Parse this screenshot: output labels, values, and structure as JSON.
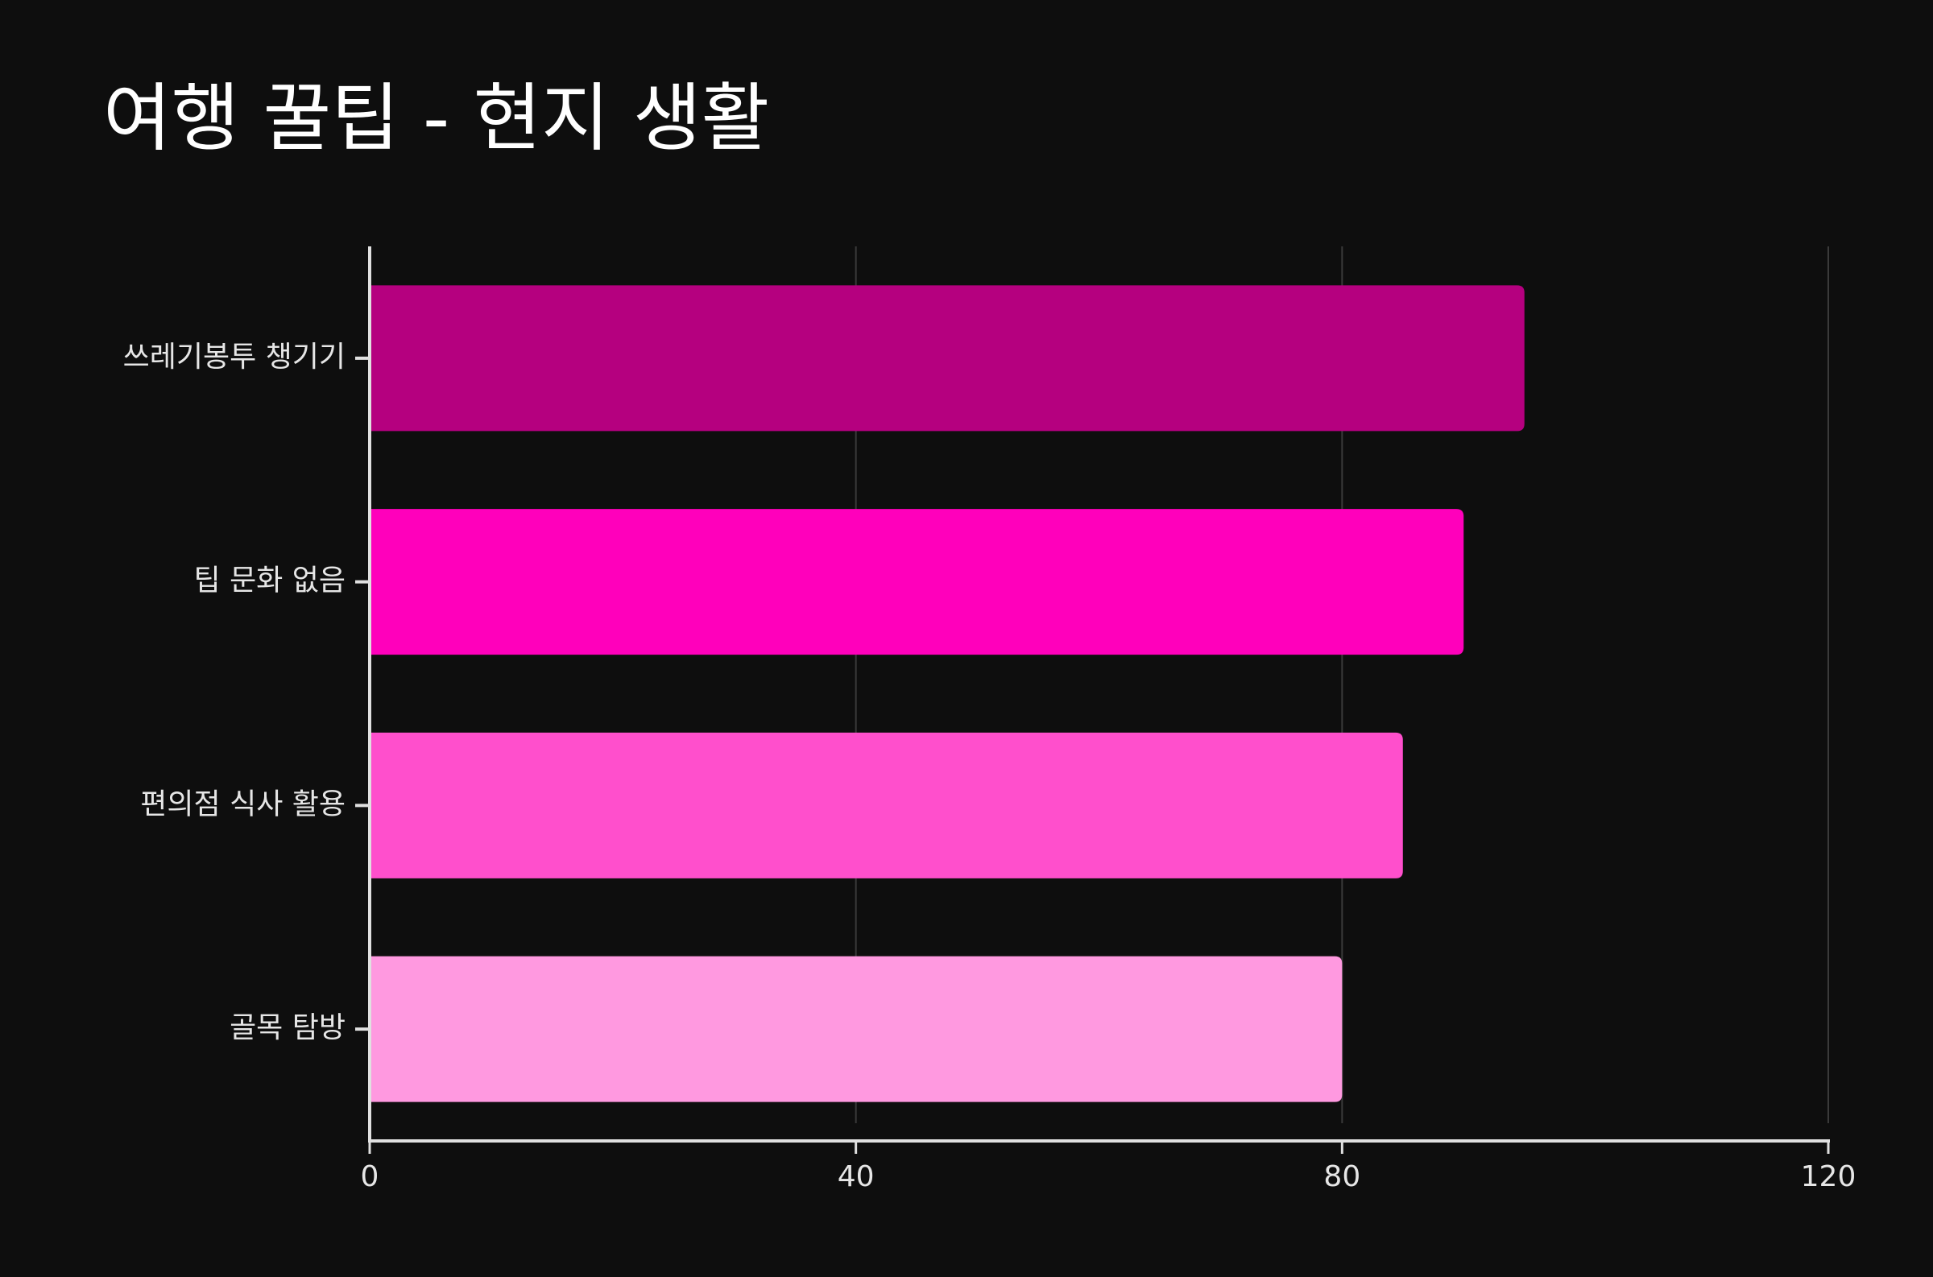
{
  "chart_data": {
    "type": "bar",
    "orientation": "horizontal",
    "title": "여행 꿀팁 - 현지 생활",
    "categories": [
      "쓰레기봉투 챙기기",
      "팁 문화 없음",
      "편의점 식사 활용",
      "골목 탐방"
    ],
    "values": [
      95,
      90,
      85,
      80
    ],
    "colors": [
      "#b5007f",
      "#ff00bb",
      "#ff4fcc",
      "#ff99e0"
    ],
    "xlim": [
      0,
      120
    ],
    "xticks": [
      0,
      40,
      80,
      120
    ],
    "grid": true
  }
}
